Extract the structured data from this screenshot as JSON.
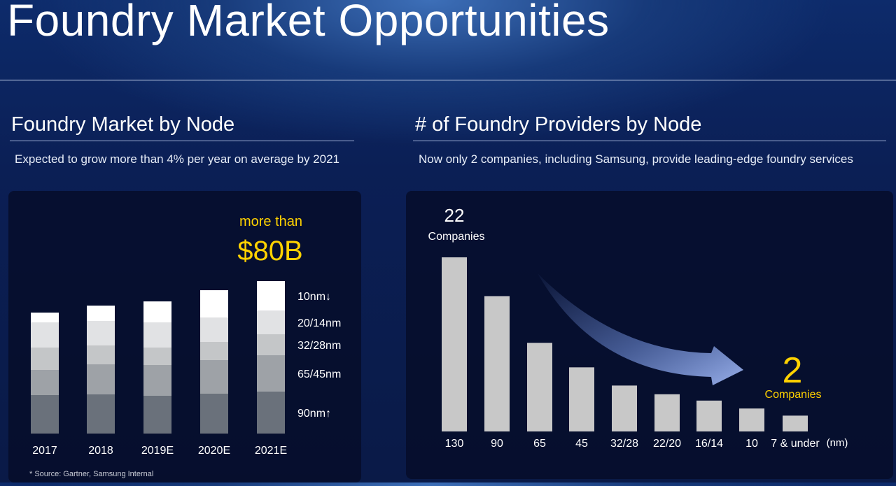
{
  "title": "Foundry Market Opportunities",
  "left": {
    "heading": "Foundry Market by Node",
    "subtitle": "Expected to grow more than 4% per year on average by 2021",
    "callout_small": "more than",
    "callout_big": "$80B",
    "source": "* Source: Gartner, Samsung Internal"
  },
  "right": {
    "heading": "# of Foundry Providers by Node",
    "subtitle": "Now only 2 companies, including Samsung, provide leading-edge foundry services",
    "start_count": "22",
    "start_label": "Companies",
    "end_count": "2",
    "end_label": "Companies",
    "unit": "(nm)"
  },
  "colors": {
    "accent": "#ffd200",
    "stack": [
      "#6a717b",
      "#9ea2a7",
      "#c4c6c8",
      "#e1e2e4",
      "#ffffff"
    ]
  },
  "chart_data": [
    {
      "type": "bar",
      "stacked": true,
      "categories": [
        "2017",
        "2018",
        "2019E",
        "2020E",
        "2021E"
      ],
      "series": [
        {
          "name": "90nm↑",
          "values": [
            55,
            56,
            54,
            57,
            60
          ]
        },
        {
          "name": "65/45nm",
          "values": [
            36,
            43,
            44,
            48,
            52
          ]
        },
        {
          "name": "32/28nm",
          "values": [
            32,
            27,
            25,
            26,
            30
          ]
        },
        {
          "name": "20/14nm",
          "values": [
            36,
            35,
            36,
            35,
            34
          ]
        },
        {
          "name": "10nm↓",
          "values": [
            14,
            22,
            30,
            39,
            42
          ]
        }
      ]
    },
    {
      "type": "bar",
      "categories": [
        "130",
        "90",
        "65",
        "45",
        "32/28",
        "22/20",
        "16/14",
        "10",
        "7 & under"
      ],
      "values": [
        22,
        17.1,
        11.2,
        8.1,
        5.8,
        4.7,
        3.9,
        2.9,
        2
      ],
      "ylim": [
        0,
        22
      ]
    }
  ]
}
